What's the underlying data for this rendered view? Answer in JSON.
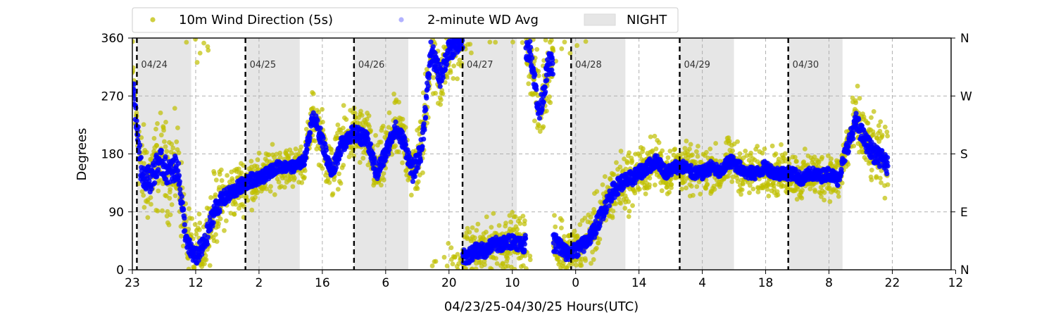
{
  "chart_data": {
    "type": "scatter",
    "title": "",
    "xlabel": "04/23/25-04/30/25  Hours(UTC)",
    "ylabel": "Degrees",
    "x_range": [
      "2025-04-23 23:00",
      "2025-05-01 12:00"
    ],
    "ylim": [
      0,
      360
    ],
    "x_tick_labels": [
      "23",
      "12",
      "2",
      "16",
      "6",
      "20",
      "10",
      "0",
      "14",
      "4",
      "18",
      "8",
      "22",
      "12"
    ],
    "y_tick_labels": [
      "0",
      "90",
      "180",
      "270",
      "360"
    ],
    "y_tick_values": [
      0,
      90,
      180,
      270,
      360
    ],
    "right_tick_labels": [
      "N",
      "E",
      "S",
      "W",
      "N"
    ],
    "grid": true,
    "legend": {
      "placement": "top (above plot)",
      "entries": [
        "10m Wind Direction (5s)",
        "2-minute WD Avg",
        "NIGHT"
      ]
    },
    "colors": {
      "raw": "#bfbf00",
      "avg": "#0000ff",
      "night": "#e6e6e6",
      "day_divider": "#000000"
    },
    "day_markers": [
      {
        "time": "2025-04-24 00:00",
        "label": "04/24"
      },
      {
        "time": "2025-04-25 00:00",
        "label": "04/25"
      },
      {
        "time": "2025-04-26 00:00",
        "label": "04/26"
      },
      {
        "time": "2025-04-27 00:00",
        "label": "04/27"
      },
      {
        "time": "2025-04-28 00:00",
        "label": "04/28"
      },
      {
        "time": "2025-04-29 00:00",
        "label": "04/29"
      },
      {
        "time": "2025-04-30 00:00",
        "label": "04/30"
      }
    ],
    "night_periods": [
      {
        "start": "2025-04-24 00:00",
        "end": "2025-04-24 12:00"
      },
      {
        "start": "2025-04-25 00:00",
        "end": "2025-04-25 12:00"
      },
      {
        "start": "2025-04-26 00:00",
        "end": "2025-04-26 12:00"
      },
      {
        "start": "2025-04-27 00:00",
        "end": "2025-04-27 12:00"
      },
      {
        "start": "2025-04-28 00:00",
        "end": "2025-04-28 12:00"
      },
      {
        "start": "2025-04-29 00:00",
        "end": "2025-04-29 12:00"
      },
      {
        "start": "2025-04-30 00:00",
        "end": "2025-04-30 12:00"
      }
    ],
    "series": [
      {
        "name": "2-minute WD Avg",
        "times": [
          "2025-04-23 23:00",
          "2025-04-24 01:00",
          "2025-04-24 03:00",
          "2025-04-24 05:00",
          "2025-04-24 07:00",
          "2025-04-24 09:00",
          "2025-04-24 11:00",
          "2025-04-24 13:00",
          "2025-04-24 15:00",
          "2025-04-24 17:00",
          "2025-04-24 19:00",
          "2025-04-24 21:00",
          "2025-04-24 23:00",
          "2025-04-25 01:00",
          "2025-04-25 03:00",
          "2025-04-25 05:00",
          "2025-04-25 07:00",
          "2025-04-25 09:00",
          "2025-04-25 11:00",
          "2025-04-25 13:00",
          "2025-04-25 15:00",
          "2025-04-25 17:00",
          "2025-04-25 19:00",
          "2025-04-25 21:00",
          "2025-04-25 23:00",
          "2025-04-26 01:00",
          "2025-04-26 03:00",
          "2025-04-26 05:00",
          "2025-04-26 07:00",
          "2025-04-26 09:00",
          "2025-04-26 11:00",
          "2025-04-26 13:00",
          "2025-04-26 15:00",
          "2025-04-26 17:00",
          "2025-04-26 19:00",
          "2025-04-26 21:00",
          "2025-04-26 23:00",
          "2025-04-27 01:00",
          "2025-04-27 03:00",
          "2025-04-27 05:00",
          "2025-04-27 07:00",
          "2025-04-27 09:00",
          "2025-04-27 11:00",
          "2025-04-27 13:00",
          "2025-04-27 15:00",
          "2025-04-27 17:00",
          "2025-04-27 19:00",
          "2025-04-27 21:00",
          "2025-04-27 23:00",
          "2025-04-28 01:00",
          "2025-04-28 03:00",
          "2025-04-28 05:00",
          "2025-04-28 07:00",
          "2025-04-28 09:00",
          "2025-04-28 11:00",
          "2025-04-28 13:00",
          "2025-04-28 15:00",
          "2025-04-28 17:00",
          "2025-04-28 19:00",
          "2025-04-28 21:00",
          "2025-04-28 23:00",
          "2025-04-29 01:00",
          "2025-04-29 03:00",
          "2025-04-29 05:00",
          "2025-04-29 07:00",
          "2025-04-29 09:00",
          "2025-04-29 11:00",
          "2025-04-29 13:00",
          "2025-04-29 15:00",
          "2025-04-29 17:00",
          "2025-04-29 19:00",
          "2025-04-29 21:00",
          "2025-04-29 23:00",
          "2025-04-30 01:00",
          "2025-04-30 03:00",
          "2025-04-30 05:00",
          "2025-04-30 07:00",
          "2025-04-30 09:00",
          "2025-04-30 11:00",
          "2025-04-30 13:00",
          "2025-04-30 15:00",
          "2025-04-30 17:00",
          "2025-04-30 19:00",
          "2025-04-30 21:00",
          "2025-04-30 22:00"
        ],
        "values": [
          300,
          150,
          140,
          170,
          150,
          160,
          40,
          20,
          40,
          90,
          110,
          120,
          130,
          140,
          140,
          150,
          160,
          160,
          160,
          170,
          240,
          200,
          150,
          190,
          210,
          210,
          200,
          150,
          180,
          220,
          200,
          150,
          190,
          340,
          300,
          340,
          350,
          20,
          30,
          30,
          40,
          40,
          45,
          40,
          340,
          240,
          320,
          40,
          25,
          30,
          40,
          60,
          90,
          120,
          135,
          140,
          150,
          160,
          170,
          150,
          160,
          160,
          150,
          150,
          160,
          150,
          170,
          160,
          150,
          150,
          160,
          150,
          150,
          150,
          140,
          150,
          145,
          150,
          140,
          190,
          230,
          200,
          180,
          170,
          160
        ]
      },
      {
        "name": "10m Wind Direction (5s)",
        "spread_deg": [
          70,
          70,
          70,
          70,
          70,
          70,
          50,
          50,
          55,
          55,
          45,
          40,
          40,
          40,
          35,
          35,
          30,
          30,
          30,
          30,
          40,
          45,
          45,
          45,
          45,
          45,
          45,
          50,
          45,
          45,
          45,
          50,
          60,
          60,
          60,
          60,
          40,
          40,
          40,
          40,
          40,
          40,
          40,
          40,
          60,
          60,
          60,
          60,
          40,
          40,
          45,
          45,
          45,
          45,
          45,
          45,
          40,
          40,
          35,
          35,
          35,
          35,
          35,
          35,
          35,
          35,
          35,
          35,
          35,
          35,
          35,
          35,
          35,
          35,
          35,
          35,
          35,
          35,
          35,
          45,
          50,
          50,
          50,
          50,
          50
        ]
      }
    ]
  }
}
